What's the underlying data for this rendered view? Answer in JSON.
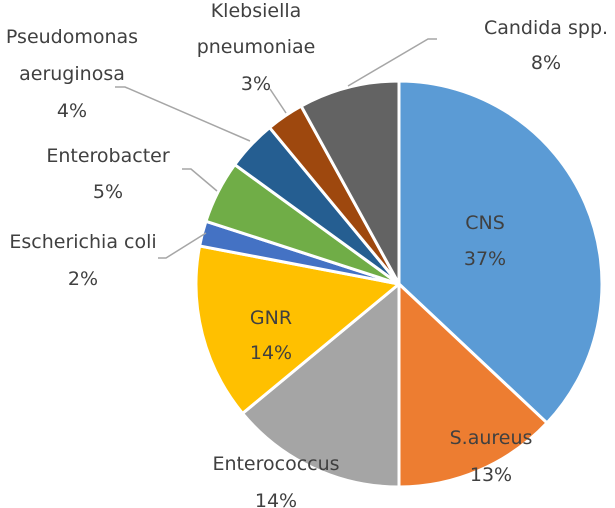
{
  "chart_data": {
    "type": "pie",
    "title": "",
    "slices": [
      {
        "label": "CNS",
        "value": 37,
        "pct_label": "37%",
        "color": "#5B9BD5"
      },
      {
        "label": "S.aureus",
        "value": 13,
        "pct_label": "13%",
        "color": "#ED7D31"
      },
      {
        "label": "Enterococcus",
        "value": 14,
        "pct_label": "14%",
        "color": "#A5A5A5"
      },
      {
        "label": "GNR",
        "value": 14,
        "pct_label": "14%",
        "color": "#FFC000"
      },
      {
        "label": "Escherichia coli",
        "value": 2,
        "pct_label": "2%",
        "color": "#4472C4"
      },
      {
        "label": "Enterobacter",
        "value": 5,
        "pct_label": "5%",
        "color": "#70AD47"
      },
      {
        "label": "Pseudomonas aeruginosa",
        "value": 4,
        "pct_label": "4%",
        "color": "#255E91"
      },
      {
        "label": "Klebsiella pneumoniae",
        "value": 3,
        "pct_label": "3%",
        "color": "#9E480E"
      },
      {
        "label": "Candida spp.",
        "value": 8,
        "pct_label": "8%",
        "color": "#636363"
      }
    ],
    "label_lines": {
      "pseudomonas": [
        "Pseudomonas",
        "aeruginosa"
      ],
      "klebsiella": [
        "Klebsiella",
        "pneumoniae"
      ]
    },
    "legend": "none",
    "label_style": "data labels with leader lines"
  }
}
